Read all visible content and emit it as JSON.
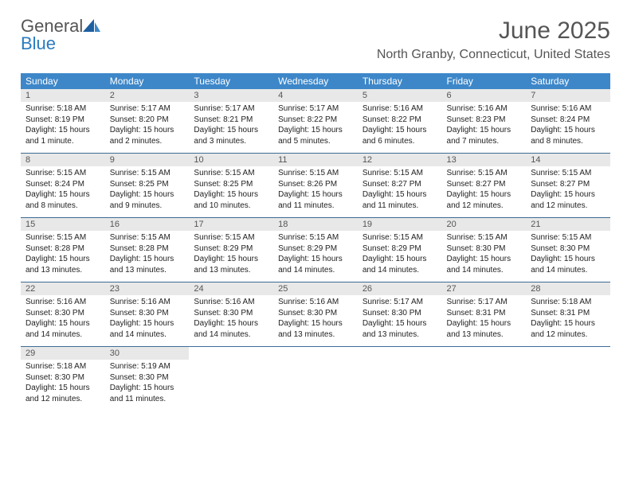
{
  "logo": {
    "text_a": "General",
    "text_b": "Blue"
  },
  "title": "June 2025",
  "location": "North Granby, Connecticut, United States",
  "colors": {
    "header_bg": "#3d87c9",
    "header_text": "#ffffff",
    "daynum_bg": "#e8e8e8",
    "row_border": "#3d6b94",
    "title_color": "#555555",
    "logo_blue": "#2a7bbf"
  },
  "typography": {
    "month_title_size": 30,
    "location_size": 16,
    "day_header_size": 12,
    "daynum_size": 11,
    "body_size": 10
  },
  "day_headers": [
    "Sunday",
    "Monday",
    "Tuesday",
    "Wednesday",
    "Thursday",
    "Friday",
    "Saturday"
  ],
  "weeks": [
    [
      {
        "n": "1",
        "sr": "Sunrise: 5:18 AM",
        "ss": "Sunset: 8:19 PM",
        "dl": "Daylight: 15 hours and 1 minute."
      },
      {
        "n": "2",
        "sr": "Sunrise: 5:17 AM",
        "ss": "Sunset: 8:20 PM",
        "dl": "Daylight: 15 hours and 2 minutes."
      },
      {
        "n": "3",
        "sr": "Sunrise: 5:17 AM",
        "ss": "Sunset: 8:21 PM",
        "dl": "Daylight: 15 hours and 3 minutes."
      },
      {
        "n": "4",
        "sr": "Sunrise: 5:17 AM",
        "ss": "Sunset: 8:22 PM",
        "dl": "Daylight: 15 hours and 5 minutes."
      },
      {
        "n": "5",
        "sr": "Sunrise: 5:16 AM",
        "ss": "Sunset: 8:22 PM",
        "dl": "Daylight: 15 hours and 6 minutes."
      },
      {
        "n": "6",
        "sr": "Sunrise: 5:16 AM",
        "ss": "Sunset: 8:23 PM",
        "dl": "Daylight: 15 hours and 7 minutes."
      },
      {
        "n": "7",
        "sr": "Sunrise: 5:16 AM",
        "ss": "Sunset: 8:24 PM",
        "dl": "Daylight: 15 hours and 8 minutes."
      }
    ],
    [
      {
        "n": "8",
        "sr": "Sunrise: 5:15 AM",
        "ss": "Sunset: 8:24 PM",
        "dl": "Daylight: 15 hours and 8 minutes."
      },
      {
        "n": "9",
        "sr": "Sunrise: 5:15 AM",
        "ss": "Sunset: 8:25 PM",
        "dl": "Daylight: 15 hours and 9 minutes."
      },
      {
        "n": "10",
        "sr": "Sunrise: 5:15 AM",
        "ss": "Sunset: 8:25 PM",
        "dl": "Daylight: 15 hours and 10 minutes."
      },
      {
        "n": "11",
        "sr": "Sunrise: 5:15 AM",
        "ss": "Sunset: 8:26 PM",
        "dl": "Daylight: 15 hours and 11 minutes."
      },
      {
        "n": "12",
        "sr": "Sunrise: 5:15 AM",
        "ss": "Sunset: 8:27 PM",
        "dl": "Daylight: 15 hours and 11 minutes."
      },
      {
        "n": "13",
        "sr": "Sunrise: 5:15 AM",
        "ss": "Sunset: 8:27 PM",
        "dl": "Daylight: 15 hours and 12 minutes."
      },
      {
        "n": "14",
        "sr": "Sunrise: 5:15 AM",
        "ss": "Sunset: 8:27 PM",
        "dl": "Daylight: 15 hours and 12 minutes."
      }
    ],
    [
      {
        "n": "15",
        "sr": "Sunrise: 5:15 AM",
        "ss": "Sunset: 8:28 PM",
        "dl": "Daylight: 15 hours and 13 minutes."
      },
      {
        "n": "16",
        "sr": "Sunrise: 5:15 AM",
        "ss": "Sunset: 8:28 PM",
        "dl": "Daylight: 15 hours and 13 minutes."
      },
      {
        "n": "17",
        "sr": "Sunrise: 5:15 AM",
        "ss": "Sunset: 8:29 PM",
        "dl": "Daylight: 15 hours and 13 minutes."
      },
      {
        "n": "18",
        "sr": "Sunrise: 5:15 AM",
        "ss": "Sunset: 8:29 PM",
        "dl": "Daylight: 15 hours and 14 minutes."
      },
      {
        "n": "19",
        "sr": "Sunrise: 5:15 AM",
        "ss": "Sunset: 8:29 PM",
        "dl": "Daylight: 15 hours and 14 minutes."
      },
      {
        "n": "20",
        "sr": "Sunrise: 5:15 AM",
        "ss": "Sunset: 8:30 PM",
        "dl": "Daylight: 15 hours and 14 minutes."
      },
      {
        "n": "21",
        "sr": "Sunrise: 5:15 AM",
        "ss": "Sunset: 8:30 PM",
        "dl": "Daylight: 15 hours and 14 minutes."
      }
    ],
    [
      {
        "n": "22",
        "sr": "Sunrise: 5:16 AM",
        "ss": "Sunset: 8:30 PM",
        "dl": "Daylight: 15 hours and 14 minutes."
      },
      {
        "n": "23",
        "sr": "Sunrise: 5:16 AM",
        "ss": "Sunset: 8:30 PM",
        "dl": "Daylight: 15 hours and 14 minutes."
      },
      {
        "n": "24",
        "sr": "Sunrise: 5:16 AM",
        "ss": "Sunset: 8:30 PM",
        "dl": "Daylight: 15 hours and 14 minutes."
      },
      {
        "n": "25",
        "sr": "Sunrise: 5:16 AM",
        "ss": "Sunset: 8:30 PM",
        "dl": "Daylight: 15 hours and 13 minutes."
      },
      {
        "n": "26",
        "sr": "Sunrise: 5:17 AM",
        "ss": "Sunset: 8:30 PM",
        "dl": "Daylight: 15 hours and 13 minutes."
      },
      {
        "n": "27",
        "sr": "Sunrise: 5:17 AM",
        "ss": "Sunset: 8:31 PM",
        "dl": "Daylight: 15 hours and 13 minutes."
      },
      {
        "n": "28",
        "sr": "Sunrise: 5:18 AM",
        "ss": "Sunset: 8:31 PM",
        "dl": "Daylight: 15 hours and 12 minutes."
      }
    ],
    [
      {
        "n": "29",
        "sr": "Sunrise: 5:18 AM",
        "ss": "Sunset: 8:30 PM",
        "dl": "Daylight: 15 hours and 12 minutes."
      },
      {
        "n": "30",
        "sr": "Sunrise: 5:19 AM",
        "ss": "Sunset: 8:30 PM",
        "dl": "Daylight: 15 hours and 11 minutes."
      },
      {
        "empty": true
      },
      {
        "empty": true
      },
      {
        "empty": true
      },
      {
        "empty": true
      },
      {
        "empty": true
      }
    ]
  ]
}
